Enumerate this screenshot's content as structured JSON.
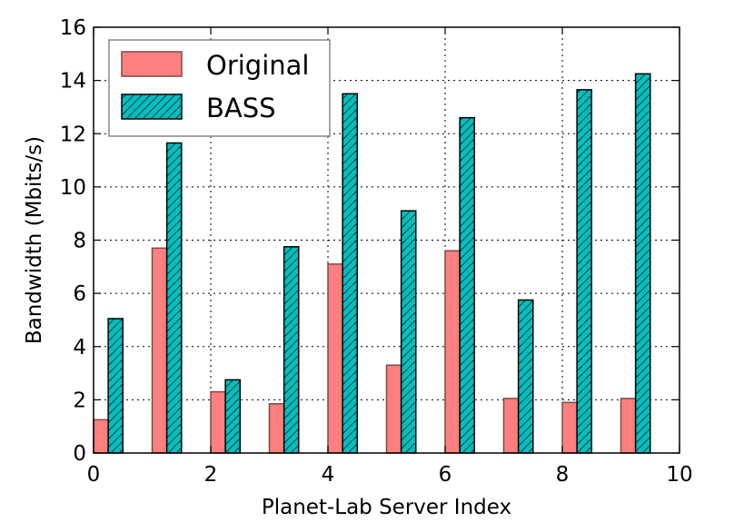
{
  "chart_data": {
    "type": "bar",
    "title": "",
    "xlabel": "Planet-Lab Server Index",
    "ylabel": "Bandwidth (Mbits/s)",
    "xlim": [
      0,
      10
    ],
    "ylim": [
      0,
      16
    ],
    "xticks": [
      0,
      2,
      4,
      6,
      8,
      10
    ],
    "yticks": [
      0,
      2,
      4,
      6,
      8,
      10,
      12,
      14,
      16
    ],
    "grid": true,
    "legend_position": "top-left",
    "x": [
      0,
      1,
      2,
      3,
      4,
      5,
      6,
      7,
      8,
      9
    ],
    "series": [
      {
        "name": "Original",
        "color": "#ff7f7f",
        "hatch": "none",
        "values": [
          1.25,
          7.7,
          2.3,
          1.85,
          7.1,
          3.3,
          7.6,
          2.05,
          1.9,
          2.05
        ]
      },
      {
        "name": "BASS",
        "color": "#00bfbf",
        "hatch": "diagonal",
        "values": [
          5.05,
          11.65,
          2.75,
          7.75,
          13.5,
          9.1,
          12.6,
          5.75,
          13.65,
          14.25
        ]
      }
    ]
  }
}
